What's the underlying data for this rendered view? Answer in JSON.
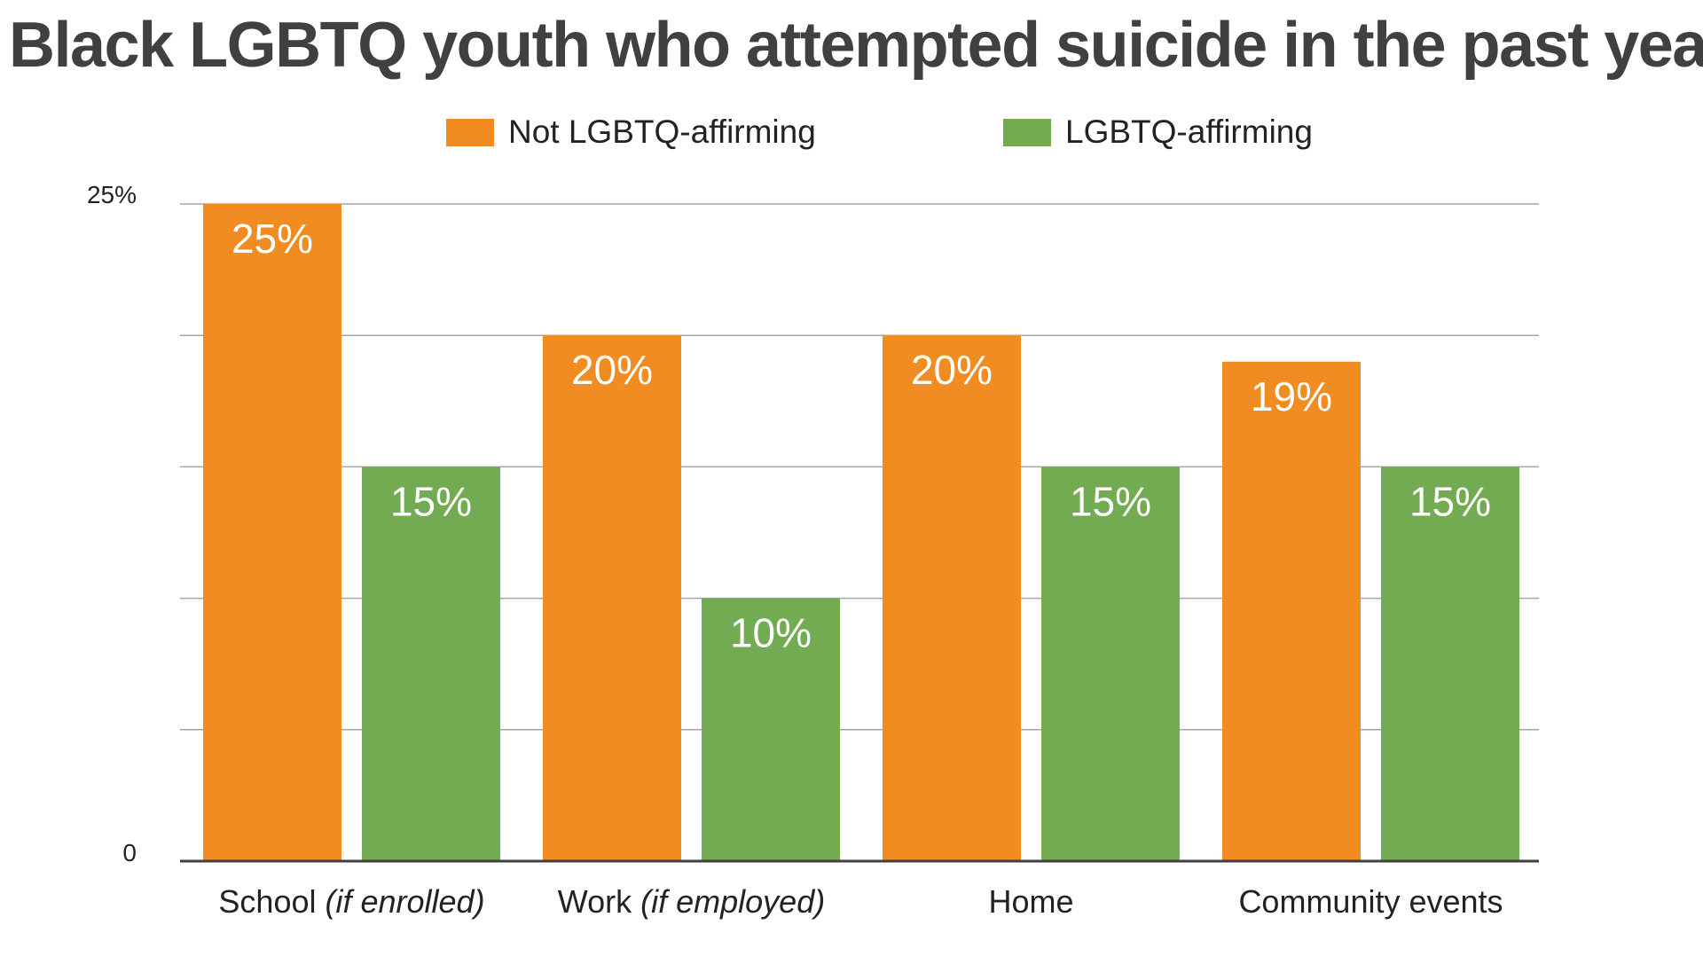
{
  "chart_data": {
    "type": "bar",
    "title": "Black LGBTQ youth who attempted suicide in the past year",
    "categories": [
      {
        "main": "School ",
        "note": "(if enrolled)"
      },
      {
        "main": "Work ",
        "note": "(if employed)"
      },
      {
        "main": "Home",
        "note": ""
      },
      {
        "main": "Community events",
        "note": ""
      }
    ],
    "series": [
      {
        "name": "Not LGBTQ-affirming",
        "color": "#f08c21",
        "values": [
          25,
          20,
          20,
          19
        ],
        "labels": [
          "25%",
          "20%",
          "20%",
          "19%"
        ]
      },
      {
        "name": "LGBTQ-affirming",
        "color": "#72ab52",
        "values": [
          15,
          10,
          15,
          15
        ],
        "labels": [
          "15%",
          "10%",
          "15%",
          "15%"
        ]
      }
    ],
    "y_tick_labels": [
      {
        "value": 25,
        "label": "25%"
      },
      {
        "value": 0,
        "label": "0"
      }
    ],
    "ylim": [
      0,
      25
    ],
    "gridlines": [
      5,
      10,
      15,
      20,
      25
    ],
    "grid": true,
    "legend_position": "top-center",
    "axis_color": "#404040",
    "grid_color": "#a6a6a6"
  }
}
